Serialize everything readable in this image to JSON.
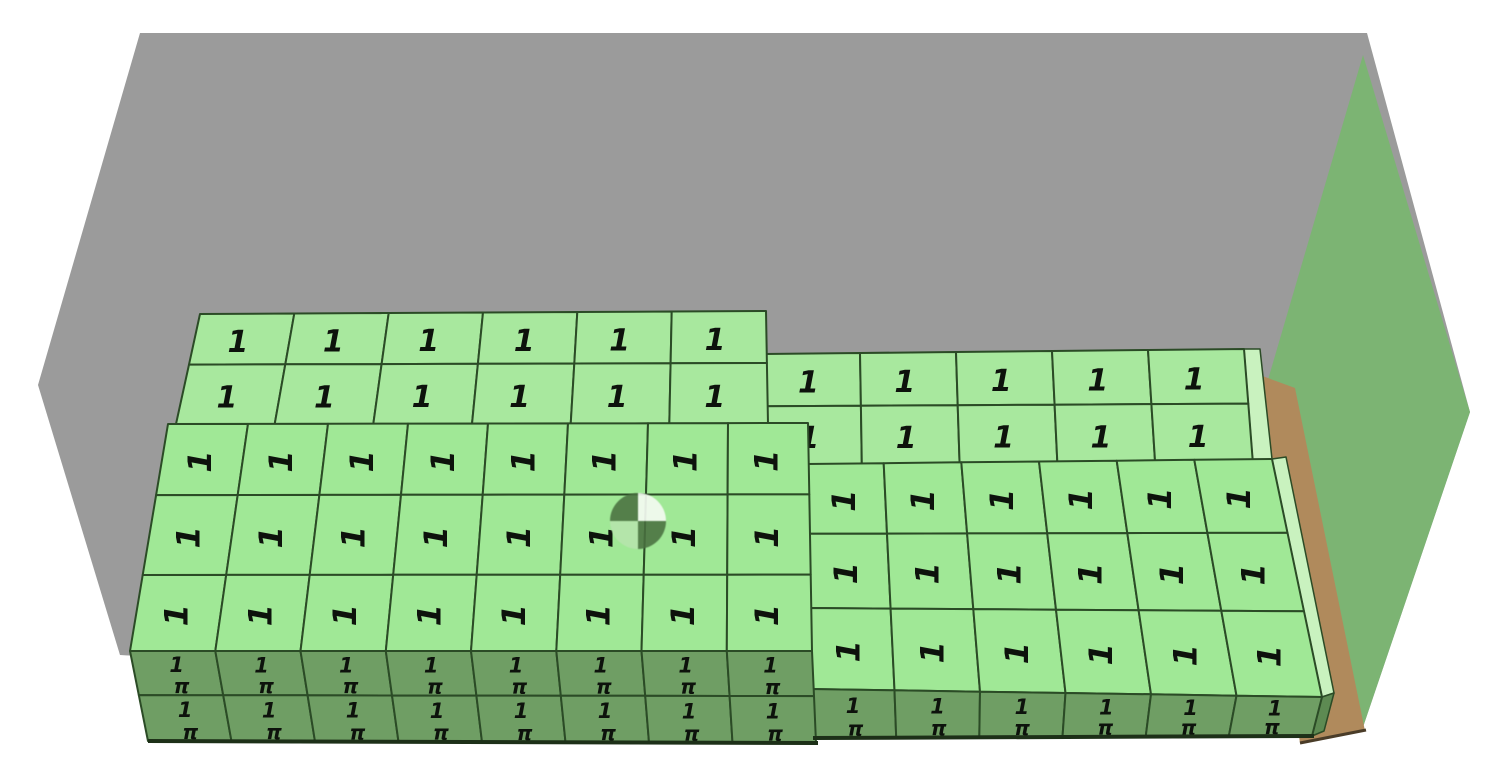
{
  "scene": {
    "background_color": "#ffffff",
    "room": {
      "back_wall_color": "#9b9b9b",
      "right_wall_color": "#7cb473",
      "floor_color": "#b08a5c"
    },
    "blocks": {
      "top_face_color": "#a8e89e",
      "front_face_color": "#a0e896",
      "base_face_color": "#6f9e64",
      "side_face_light_color": "#c9f2bf",
      "side_face_dark_color": "#5d8a52",
      "edge_color": "#2b4b26",
      "bottom_edge_color": "#1d3018",
      "floor_edge_color": "#4a3c28",
      "label_color": "#0d120c",
      "top_face_label": "1",
      "front_face_label": "1",
      "base_face_label_line1": "1",
      "base_face_label_line2": "π"
    },
    "block_groups": [
      {
        "name": "left-stack",
        "tiers": [
          {
            "face": "top",
            "rows": 2,
            "cols": 6
          },
          {
            "face": "front",
            "rows": 3,
            "cols": 8
          },
          {
            "face": "base",
            "rows": 2,
            "cols": 8
          }
        ]
      },
      {
        "name": "right-stack",
        "tiers": [
          {
            "face": "top",
            "rows": 2,
            "cols": 5
          },
          {
            "face": "front",
            "rows": 3,
            "cols": 6
          },
          {
            "face": "base",
            "rows": 1,
            "cols": 6
          }
        ]
      }
    ],
    "crosshair": {
      "top_left_color": "rgba(73,112,64,0.88)",
      "top_right_color": "rgba(243,250,241,0.92)",
      "bottom_right_color": "rgba(73,112,64,0.88)",
      "bottom_left_color": "rgba(183,228,173,0.88)"
    }
  }
}
